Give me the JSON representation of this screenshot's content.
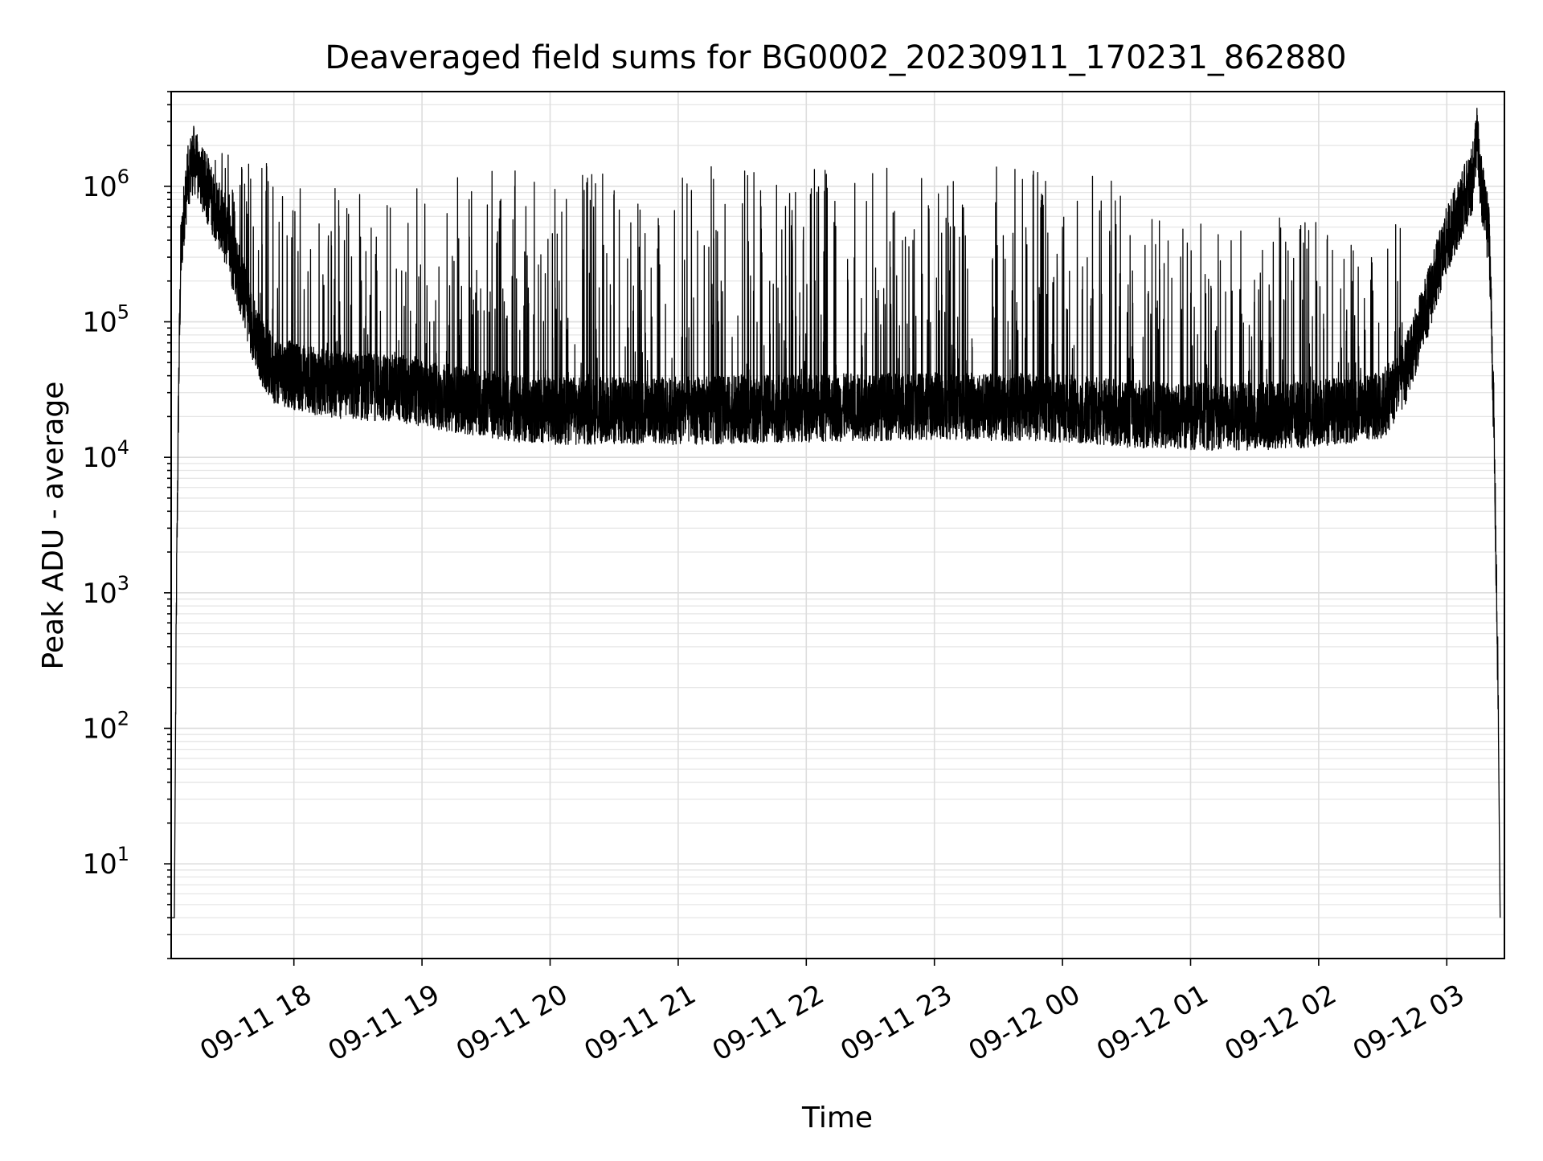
{
  "chart_data": {
    "type": "line",
    "title": "Deaveraged field sums for BG0002_20230911_170231_862880",
    "xlabel": "Time",
    "ylabel": "Peak ADU - average",
    "yscale": "log",
    "ylim": [
      2,
      5000000
    ],
    "xlim": [
      "2023-09-11 17:02:31",
      "2023-09-12 03:27:00"
    ],
    "grid": true,
    "line_color": "#000000",
    "x_ticks": [
      {
        "value": "2023-09-11 18:00",
        "label": "09-11 18"
      },
      {
        "value": "2023-09-11 19:00",
        "label": "09-11 19"
      },
      {
        "value": "2023-09-11 20:00",
        "label": "09-11 20"
      },
      {
        "value": "2023-09-11 21:00",
        "label": "09-11 21"
      },
      {
        "value": "2023-09-11 22:00",
        "label": "09-11 22"
      },
      {
        "value": "2023-09-11 23:00",
        "label": "09-11 23"
      },
      {
        "value": "2023-09-12 00:00",
        "label": "09-12 00"
      },
      {
        "value": "2023-09-12 01:00",
        "label": "09-12 01"
      },
      {
        "value": "2023-09-12 02:00",
        "label": "09-12 02"
      },
      {
        "value": "2023-09-12 03:00",
        "label": "09-12 03"
      }
    ],
    "y_ticks": [
      {
        "value": 10,
        "base": "10",
        "exp": "1"
      },
      {
        "value": 100,
        "base": "10",
        "exp": "2"
      },
      {
        "value": 1000,
        "base": "10",
        "exp": "3"
      },
      {
        "value": 10000,
        "base": "10",
        "exp": "4"
      },
      {
        "value": 100000,
        "base": "10",
        "exp": "5"
      },
      {
        "value": 1000000,
        "base": "10",
        "exp": "6"
      }
    ],
    "series": [
      {
        "points": [
          [
            "2023-09-11 17:02",
            4
          ],
          [
            "2023-09-11 17:04",
            4
          ],
          [
            "2023-09-11 17:05",
            1000
          ],
          [
            "2023-09-11 17:06",
            30000
          ],
          [
            "2023-09-11 17:07",
            300000
          ],
          [
            "2023-09-11 17:09",
            800000
          ],
          [
            "2023-09-11 17:11",
            1300000
          ],
          [
            "2023-09-11 17:13",
            1600000
          ],
          [
            "2023-09-11 17:16",
            1200000
          ],
          [
            "2023-09-11 17:20",
            900000
          ],
          [
            "2023-09-11 17:25",
            600000
          ],
          [
            "2023-09-11 17:30",
            350000
          ],
          [
            "2023-09-11 17:35",
            200000
          ],
          [
            "2023-09-11 17:40",
            100000
          ],
          [
            "2023-09-11 17:45",
            60000
          ],
          [
            "2023-09-11 17:50",
            45000
          ],
          [
            "2023-09-11 18:00",
            40000
          ],
          [
            "2023-09-11 18:15",
            35000
          ],
          [
            "2023-09-11 18:30",
            33000
          ],
          [
            "2023-09-11 18:45",
            33000
          ],
          [
            "2023-09-11 19:00",
            30000
          ],
          [
            "2023-09-11 19:15",
            27000
          ],
          [
            "2023-09-11 19:30",
            25000
          ],
          [
            "2023-09-11 19:45",
            23000
          ],
          [
            "2023-09-11 20:00",
            22000
          ],
          [
            "2023-09-11 21:00",
            22000
          ],
          [
            "2023-09-11 22:00",
            23000
          ],
          [
            "2023-09-11 23:00",
            24000
          ],
          [
            "2023-09-12 00:00",
            23000
          ],
          [
            "2023-09-12 00:30",
            21000
          ],
          [
            "2023-09-12 01:00",
            20000
          ],
          [
            "2023-09-12 01:30",
            20000
          ],
          [
            "2023-09-12 02:00",
            21000
          ],
          [
            "2023-09-12 02:30",
            24000
          ],
          [
            "2023-09-12 02:40",
            40000
          ],
          [
            "2023-09-12 02:50",
            120000
          ],
          [
            "2023-09-12 03:00",
            400000
          ],
          [
            "2023-09-12 03:08",
            800000
          ],
          [
            "2023-09-12 03:12",
            1100000
          ],
          [
            "2023-09-12 03:14",
            2400000
          ],
          [
            "2023-09-12 03:16",
            1000000
          ],
          [
            "2023-09-12 03:20",
            400000
          ],
          [
            "2023-09-12 03:22",
            20000
          ],
          [
            "2023-09-12 03:23",
            2000
          ],
          [
            "2023-09-12 03:24",
            200
          ],
          [
            "2023-09-12 03:25",
            4
          ]
        ],
        "spikes": [
          {
            "from": "2023-09-11 17:10",
            "to": "2023-09-11 17:55",
            "peak": 1800000
          },
          {
            "from": "2023-09-11 17:55",
            "to": "2023-09-11 19:15",
            "peak": 1000000
          },
          {
            "from": "2023-09-11 19:15",
            "to": "2023-09-11 20:00",
            "peak": 1300000
          },
          {
            "from": "2023-09-11 20:00",
            "to": "2023-09-12 00:00",
            "peak": 1400000
          },
          {
            "from": "2023-09-12 00:00",
            "to": "2023-09-12 00:30",
            "peak": 1200000
          },
          {
            "from": "2023-09-12 00:30",
            "to": "2023-09-12 02:40",
            "peak": 600000
          }
        ]
      }
    ]
  }
}
